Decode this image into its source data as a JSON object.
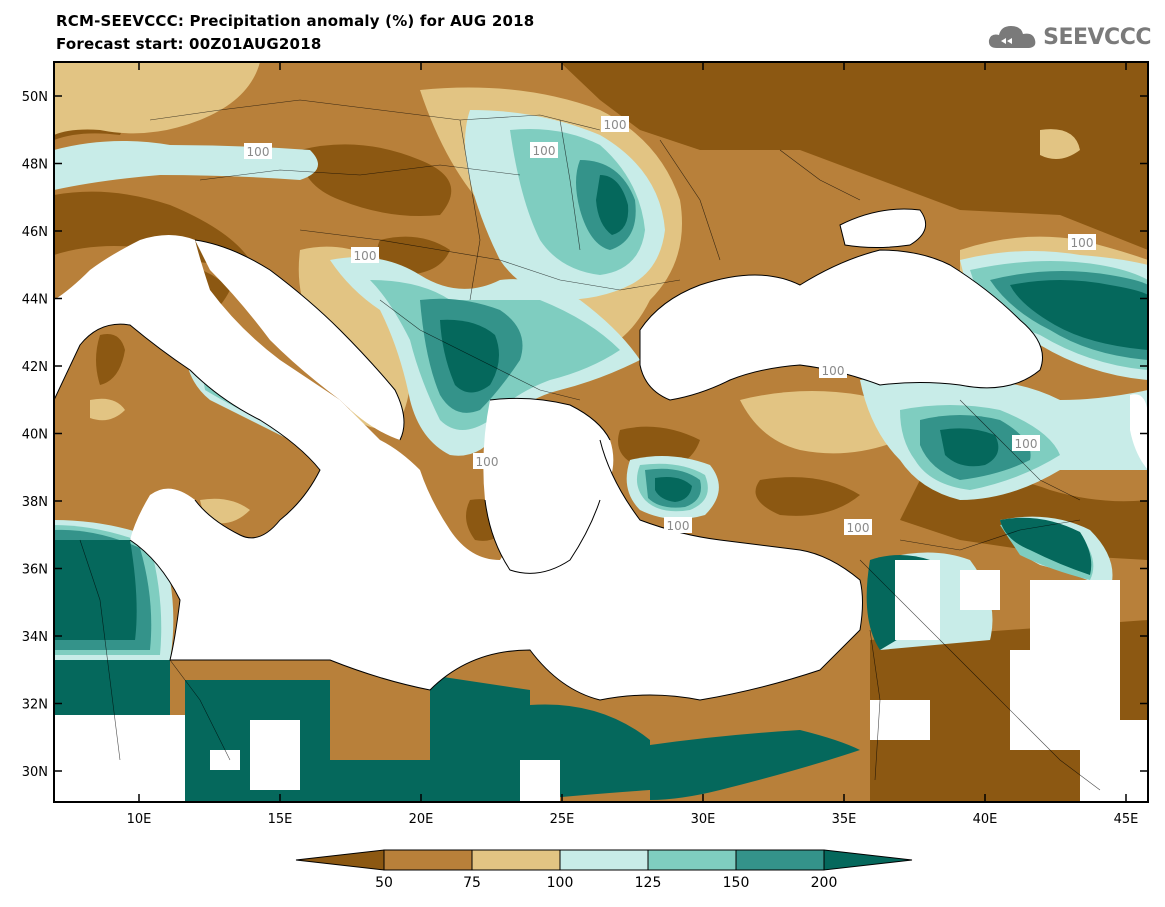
{
  "header": {
    "title_line1": "RCM-SEEVCCC: Precipitation anomaly (%) for AUG 2018",
    "title_line2": "Forecast start: 00Z01AUG2018"
  },
  "logo": {
    "text": "SEEVCCC",
    "icon": "cloud-icon",
    "color": "#7a7a7a"
  },
  "map": {
    "lat_labels": [
      "50N",
      "48N",
      "46N",
      "44N",
      "42N",
      "40N",
      "38N",
      "36N",
      "34N",
      "32N",
      "30N"
    ],
    "lon_labels": [
      "10E",
      "15E",
      "20E",
      "25E",
      "30E",
      "35E",
      "40E",
      "45E"
    ],
    "contour_labels": [
      "100",
      "100",
      "100",
      "100",
      "100",
      "100",
      "100",
      "100",
      "100",
      "100"
    ]
  },
  "legend": {
    "levels": [
      "50",
      "75",
      "100",
      "125",
      "150",
      "200"
    ],
    "colors": [
      "#8c5812",
      "#b8803a",
      "#e2c483",
      "#c8ece8",
      "#7fcdc0",
      "#34938a",
      "#05685c"
    ]
  }
}
